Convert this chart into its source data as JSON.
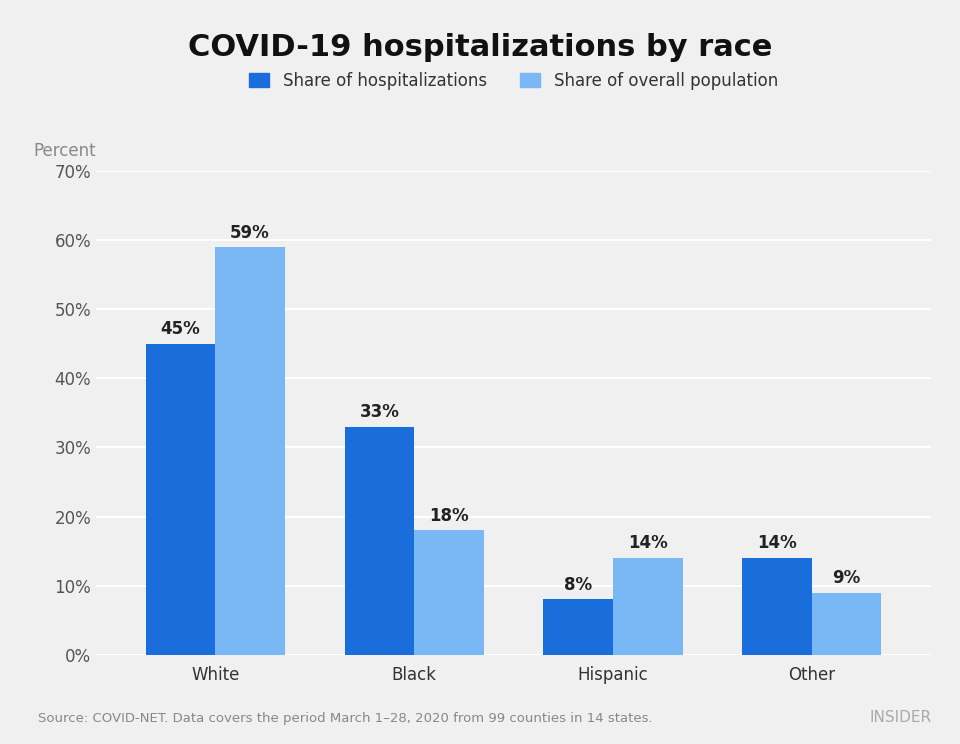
{
  "title": "COVID-19 hospitalizations by race",
  "categories": [
    "White",
    "Black",
    "Hispanic",
    "Other"
  ],
  "hosp_values": [
    45,
    33,
    8,
    14
  ],
  "pop_values": [
    59,
    18,
    14,
    9
  ],
  "hosp_color": "#1a6edb",
  "pop_color": "#7ab8f5",
  "bar_width": 0.35,
  "ylim": [
    0,
    70
  ],
  "yticks": [
    0,
    10,
    20,
    30,
    40,
    50,
    60,
    70
  ],
  "ylabel": "Percent",
  "legend_hosp": "Share of hospitalizations",
  "legend_pop": "Share of overall population",
  "source_text": "Source: COVID-NET. Data covers the period March 1–28, 2020 from 99 counties in 14 states.",
  "watermark": "INSIDER",
  "background_color": "#f0f0f0",
  "plot_bg_color": "#f0f0f0",
  "title_fontsize": 22,
  "tick_fontsize": 12,
  "annotation_fontsize": 12,
  "legend_fontsize": 12,
  "ylabel_fontsize": 12
}
